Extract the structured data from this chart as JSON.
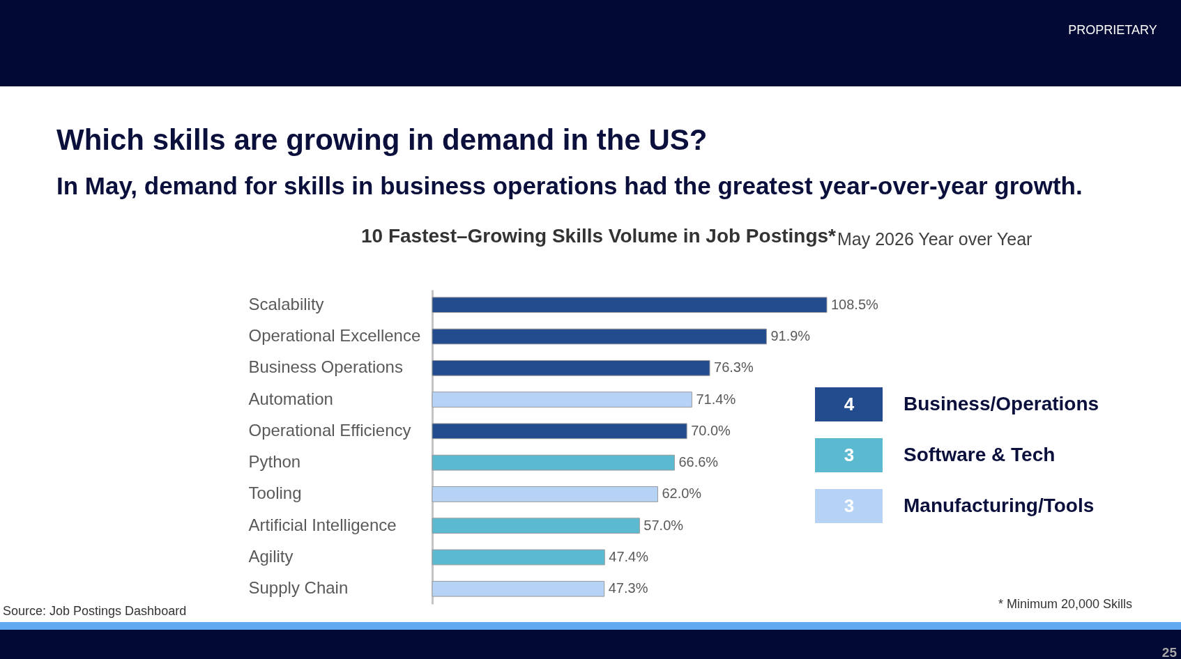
{
  "chart_data": [
    {
      "type": "bar",
      "orientation": "horizontal",
      "title": "Which skills are growing in demand in the US?",
      "subtitle": "In May, demand for skills in business operations had the greatest year-over-year growth.",
      "categories": [
        "Scalability",
        "Operational Excellence",
        "Business Operations",
        "Automation",
        "Operational Efficiency",
        "Python",
        "Tooling",
        "Artificial Intelligence",
        "Agility",
        "Supply Chain"
      ],
      "values": [
        108.5,
        91.9,
        76.3,
        71.4,
        70.0,
        66.6,
        62.0,
        57.0,
        47.4,
        47.3
      ],
      "value_labels": [
        "108.5%",
        "91.9%",
        "76.3%",
        "71.4%",
        "70.0%",
        "66.6%",
        "62.0%",
        "57.0%",
        "47.4%",
        "47.3%"
      ],
      "colors": [
        "#234c8f",
        "#234c8f",
        "#234c8f",
        "#b6d3f6",
        "#234c8f",
        "#5cbad0",
        "#b6d3f6",
        "#5cbad0",
        "#5cbad0",
        "#b6d3f6"
      ],
      "tick_labels": "y",
      "annotations": [
        "PROPRIETARY",
        "10 Fastest–Growing Skills Volume in Job Postings*",
        "May 2026 Year over Year",
        "Source: Job Postings Dashboard",
        "* Minimum 20,000 Skills",
        "25"
      ]
    },
    {
      "type": "other",
      "categories": [
        "Business/Operations",
        "Software & Tech",
        "Manufacturing/Tools"
      ],
      "values": [
        4,
        3,
        3
      ],
      "colors": [
        "#234c8f",
        "#5cbad0",
        "#b6d3f6"
      ],
      "data_labels": true
    }
  ]
}
